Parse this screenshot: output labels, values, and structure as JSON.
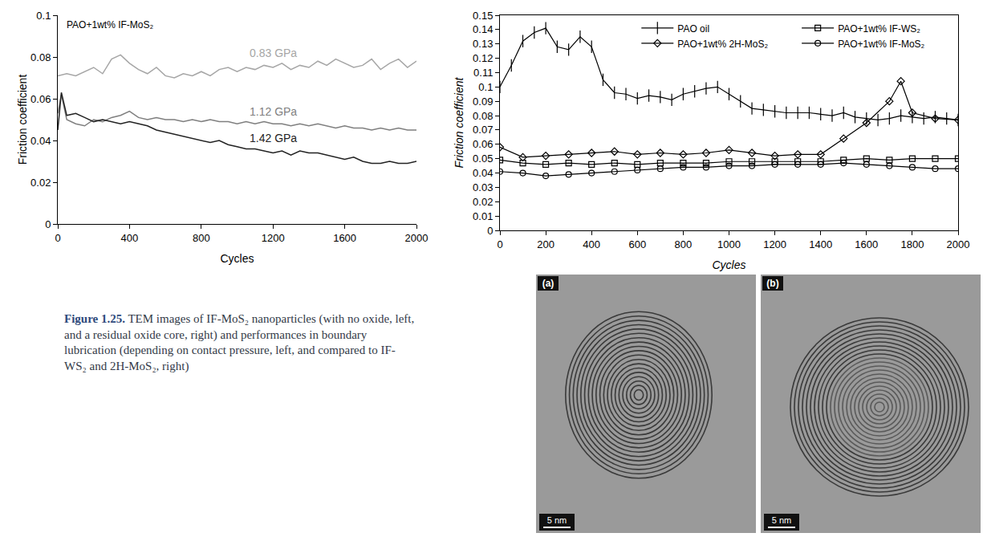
{
  "chart_data": [
    {
      "type": "line",
      "title": "PAO+1wt% IF-MoS₂",
      "x_label": "Cycles",
      "y_label": "Friction coefficient",
      "xlim": [
        0,
        2000
      ],
      "xticks": [
        0,
        400,
        800,
        1200,
        1600,
        2000
      ],
      "ylim": [
        0,
        0.1
      ],
      "yticks": [
        0,
        0.02,
        0.04,
        0.06,
        0.08,
        0.1
      ],
      "grid": false,
      "series": [
        {
          "name": "0.83 GPa",
          "color": "#a6a6a6",
          "line_style": "solid",
          "x": [
            0,
            50,
            100,
            150,
            200,
            250,
            300,
            350,
            400,
            450,
            500,
            550,
            600,
            650,
            700,
            750,
            800,
            850,
            900,
            950,
            1000,
            1050,
            1100,
            1150,
            1200,
            1250,
            1300,
            1350,
            1400,
            1450,
            1500,
            1550,
            1600,
            1650,
            1700,
            1750,
            1800,
            1850,
            1900,
            1950,
            2000
          ],
          "values": [
            0.071,
            0.072,
            0.071,
            0.073,
            0.075,
            0.072,
            0.079,
            0.081,
            0.077,
            0.074,
            0.072,
            0.075,
            0.071,
            0.07,
            0.072,
            0.071,
            0.073,
            0.071,
            0.074,
            0.075,
            0.073,
            0.075,
            0.074,
            0.076,
            0.075,
            0.077,
            0.074,
            0.076,
            0.075,
            0.078,
            0.076,
            0.079,
            0.077,
            0.075,
            0.076,
            0.079,
            0.074,
            0.077,
            0.079,
            0.075,
            0.078
          ]
        },
        {
          "name": "1.12 GPa",
          "color": "#7f7f7f",
          "line_style": "solid",
          "x": [
            0,
            20,
            50,
            100,
            150,
            200,
            250,
            300,
            350,
            400,
            450,
            500,
            550,
            600,
            650,
            700,
            750,
            800,
            850,
            900,
            950,
            1000,
            1050,
            1100,
            1150,
            1200,
            1250,
            1300,
            1350,
            1400,
            1450,
            1500,
            1550,
            1600,
            1650,
            1700,
            1750,
            1800,
            1850,
            1900,
            1950,
            2000
          ],
          "values": [
            0.053,
            0.062,
            0.05,
            0.048,
            0.047,
            0.05,
            0.049,
            0.051,
            0.052,
            0.054,
            0.051,
            0.05,
            0.051,
            0.05,
            0.05,
            0.049,
            0.05,
            0.049,
            0.05,
            0.049,
            0.049,
            0.048,
            0.049,
            0.048,
            0.049,
            0.048,
            0.048,
            0.047,
            0.048,
            0.047,
            0.048,
            0.047,
            0.046,
            0.047,
            0.046,
            0.046,
            0.045,
            0.046,
            0.045,
            0.046,
            0.045,
            0.045
          ]
        },
        {
          "name": "1.42 GPa",
          "color": "#222222",
          "line_style": "solid",
          "x": [
            0,
            20,
            50,
            100,
            150,
            200,
            250,
            300,
            350,
            400,
            450,
            500,
            550,
            600,
            650,
            700,
            750,
            800,
            850,
            900,
            950,
            1000,
            1050,
            1100,
            1150,
            1200,
            1250,
            1300,
            1350,
            1400,
            1450,
            1500,
            1550,
            1600,
            1650,
            1700,
            1750,
            1800,
            1850,
            1900,
            1950,
            2000
          ],
          "values": [
            0.045,
            0.063,
            0.052,
            0.053,
            0.051,
            0.049,
            0.05,
            0.049,
            0.048,
            0.049,
            0.048,
            0.047,
            0.045,
            0.044,
            0.043,
            0.042,
            0.041,
            0.04,
            0.039,
            0.04,
            0.038,
            0.037,
            0.036,
            0.036,
            0.035,
            0.034,
            0.035,
            0.033,
            0.035,
            0.034,
            0.034,
            0.033,
            0.032,
            0.031,
            0.032,
            0.03,
            0.029,
            0.029,
            0.03,
            0.029,
            0.029,
            0.03
          ]
        }
      ]
    },
    {
      "type": "line",
      "x_label": "Cycles",
      "y_label": "Friction coefficient",
      "xlim": [
        0,
        2000
      ],
      "xticks": [
        0,
        200,
        400,
        600,
        800,
        1000,
        1200,
        1400,
        1600,
        1800,
        2000
      ],
      "ylim": [
        0,
        0.15
      ],
      "yticks": [
        0,
        0.01,
        0.02,
        0.03,
        0.04,
        0.05,
        0.06,
        0.07,
        0.08,
        0.09,
        0.1,
        0.11,
        0.12,
        0.13,
        0.14,
        0.15
      ],
      "grid": false,
      "legend": "upper right",
      "series": [
        {
          "name": "PAO oil",
          "color": "#000000",
          "marker": "vertical-tick",
          "line_style": "solid",
          "x": [
            0,
            50,
            100,
            150,
            200,
            250,
            300,
            350,
            400,
            450,
            500,
            550,
            600,
            650,
            700,
            750,
            800,
            850,
            900,
            950,
            1000,
            1050,
            1100,
            1150,
            1200,
            1250,
            1300,
            1350,
            1400,
            1450,
            1500,
            1550,
            1600,
            1650,
            1700,
            1750,
            1800,
            1850,
            1900,
            1950,
            2000
          ],
          "values": [
            0.1,
            0.115,
            0.132,
            0.138,
            0.141,
            0.128,
            0.126,
            0.135,
            0.128,
            0.105,
            0.096,
            0.095,
            0.092,
            0.094,
            0.093,
            0.091,
            0.095,
            0.097,
            0.099,
            0.1,
            0.095,
            0.09,
            0.085,
            0.084,
            0.083,
            0.082,
            0.082,
            0.082,
            0.081,
            0.08,
            0.082,
            0.079,
            0.078,
            0.077,
            0.078,
            0.08,
            0.079,
            0.078,
            0.079,
            0.078,
            0.077
          ]
        },
        {
          "name": "PAO+1wt% IF-WS₂",
          "color": "#000000",
          "marker": "square",
          "line_style": "solid",
          "x": [
            0,
            100,
            200,
            300,
            400,
            500,
            600,
            700,
            800,
            900,
            1000,
            1100,
            1200,
            1300,
            1400,
            1500,
            1600,
            1700,
            1800,
            1900,
            2000
          ],
          "values": [
            0.049,
            0.047,
            0.046,
            0.047,
            0.046,
            0.047,
            0.046,
            0.047,
            0.047,
            0.047,
            0.048,
            0.048,
            0.048,
            0.048,
            0.048,
            0.049,
            0.05,
            0.049,
            0.05,
            0.05,
            0.05
          ]
        },
        {
          "name": "PAO+1wt% 2H-MoS₂",
          "color": "#000000",
          "marker": "diamond",
          "line_style": "solid",
          "x": [
            0,
            100,
            200,
            300,
            400,
            500,
            600,
            700,
            800,
            900,
            1000,
            1100,
            1200,
            1300,
            1400,
            1500,
            1600,
            1700,
            1750,
            1800,
            1900,
            2000
          ],
          "values": [
            0.058,
            0.051,
            0.052,
            0.053,
            0.054,
            0.055,
            0.053,
            0.054,
            0.053,
            0.054,
            0.056,
            0.054,
            0.052,
            0.053,
            0.053,
            0.064,
            0.075,
            0.09,
            0.104,
            0.082,
            0.078,
            0.077
          ]
        },
        {
          "name": "PAO+1wt% IF-MoS₂",
          "color": "#000000",
          "marker": "circle",
          "line_style": "solid",
          "x": [
            0,
            100,
            200,
            300,
            400,
            500,
            600,
            700,
            800,
            900,
            1000,
            1100,
            1200,
            1300,
            1400,
            1500,
            1600,
            1700,
            1800,
            1900,
            2000
          ],
          "values": [
            0.041,
            0.04,
            0.038,
            0.039,
            0.04,
            0.041,
            0.042,
            0.043,
            0.044,
            0.044,
            0.045,
            0.045,
            0.046,
            0.046,
            0.046,
            0.047,
            0.046,
            0.045,
            0.044,
            0.043,
            0.043
          ]
        }
      ]
    }
  ],
  "caption": {
    "label": "Figure 1.25.",
    "text": "TEM images of IF-MoS₂ nanoparticles (with no oxide, left, and a residual oxide core, right) and performances in boundary lubrication (depending on contact pressure, left, and compared to IF-WS₂ and 2H-MoS₂, right)"
  },
  "images": [
    {
      "label": "(a)",
      "scale_bar": "5 nm"
    },
    {
      "label": "(b)",
      "scale_bar": "5 nm"
    }
  ]
}
